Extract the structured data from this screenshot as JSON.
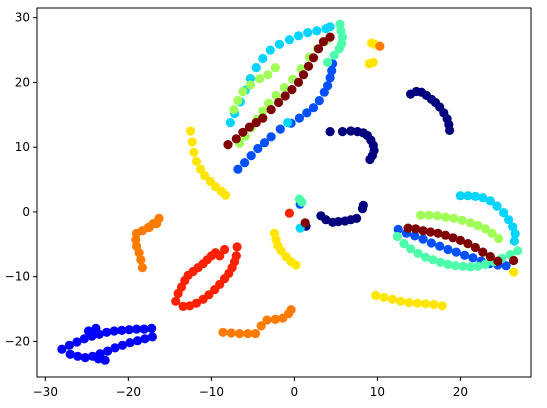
{
  "chart_data": {
    "type": "scatter",
    "title": "",
    "xlabel": "",
    "ylabel": "",
    "xlim": [
      -31,
      28.5
    ],
    "ylim": [
      -25.5,
      31.5
    ],
    "xticks": [
      -30,
      -20,
      -10,
      0,
      10,
      20
    ],
    "yticks": [
      -20,
      -10,
      0,
      10,
      20,
      30
    ],
    "grid": false,
    "legend": "none",
    "colors": {
      "navy": "#00007f",
      "blue": "#0000ff",
      "royalblue": "#0050ff",
      "cyan": "#00d4ff",
      "aquamarine": "#4dffaa",
      "lime": "#a0ff57",
      "yellow": "#ffe500",
      "orange": "#ff7b00",
      "red": "#ff2200",
      "maroon": "#7f0000"
    },
    "series": [
      {
        "color": "navy",
        "points": [
          [
            4.3,
            12.4
          ],
          [
            5.8,
            12.4
          ],
          [
            6.8,
            12.5
          ],
          [
            7.6,
            12.4
          ],
          [
            8.3,
            12.2
          ],
          [
            8.8,
            11.8
          ],
          [
            9.2,
            11.1
          ],
          [
            9.5,
            10.3
          ],
          [
            9.6,
            9.5
          ],
          [
            9.4,
            8.7
          ],
          [
            9.1,
            8.1
          ],
          [
            14.0,
            18.2
          ],
          [
            14.7,
            18.6
          ],
          [
            15.3,
            18.5
          ],
          [
            15.9,
            18.0
          ],
          [
            16.5,
            17.4
          ],
          [
            17.0,
            16.9
          ],
          [
            17.5,
            16.2
          ],
          [
            18.0,
            15.3
          ],
          [
            18.4,
            14.4
          ],
          [
            18.6,
            13.5
          ],
          [
            18.7,
            12.6
          ],
          [
            3.2,
            -0.6
          ],
          [
            3.8,
            -1.2
          ],
          [
            4.6,
            -1.6
          ],
          [
            5.3,
            -1.5
          ],
          [
            6.1,
            -1.4
          ],
          [
            6.8,
            -1.2
          ],
          [
            7.5,
            -1.0
          ],
          [
            8.2,
            0.5
          ],
          [
            8.3,
            1.0
          ],
          [
            1.4,
            -2.2
          ]
        ]
      },
      {
        "color": "blue",
        "points": [
          [
            -28.0,
            -21.2
          ],
          [
            -27.1,
            -20.6
          ],
          [
            -26.2,
            -20.1
          ],
          [
            -25.3,
            -19.6
          ],
          [
            -24.4,
            -19.2
          ],
          [
            -23.5,
            -18.9
          ],
          [
            -22.6,
            -18.6
          ],
          [
            -21.7,
            -18.4
          ],
          [
            -20.8,
            -18.3
          ],
          [
            -19.9,
            -18.2
          ],
          [
            -19.0,
            -18.1
          ],
          [
            -18.1,
            -18.1
          ],
          [
            -17.2,
            -18.0
          ],
          [
            -17.1,
            -19.3
          ],
          [
            -18.0,
            -19.6
          ],
          [
            -18.9,
            -19.9
          ],
          [
            -19.8,
            -20.2
          ],
          [
            -20.7,
            -20.6
          ],
          [
            -21.6,
            -21.0
          ],
          [
            -22.5,
            -21.5
          ],
          [
            -23.4,
            -21.9
          ],
          [
            -24.3,
            -22.3
          ],
          [
            -25.2,
            -22.5
          ],
          [
            -26.1,
            -22.3
          ],
          [
            -27.0,
            -22.0
          ],
          [
            -24.8,
            -18.4
          ],
          [
            -23.9,
            -18.0
          ],
          [
            -22.8,
            -22.9
          ],
          [
            -23.6,
            -22.7
          ]
        ]
      },
      {
        "color": "royalblue",
        "points": [
          [
            -6.8,
            6.6
          ],
          [
            -6.0,
            7.6
          ],
          [
            -5.2,
            8.7
          ],
          [
            -4.4,
            9.8
          ],
          [
            -3.6,
            10.7
          ],
          [
            -2.8,
            11.6
          ],
          [
            -1.7,
            12.8
          ],
          [
            -0.4,
            13.7
          ],
          [
            0.6,
            14.5
          ],
          [
            1.5,
            15.3
          ],
          [
            2.3,
            16.1
          ],
          [
            3.0,
            17.2
          ],
          [
            3.6,
            18.5
          ],
          [
            4.0,
            19.5
          ],
          [
            4.3,
            20.7
          ],
          [
            4.5,
            21.8
          ],
          [
            4.6,
            22.9
          ],
          [
            12.5,
            -2.7
          ],
          [
            13.5,
            -3.3
          ],
          [
            14.5,
            -3.7
          ],
          [
            15.5,
            -4.2
          ],
          [
            16.5,
            -4.8
          ],
          [
            17.5,
            -5.3
          ],
          [
            18.5,
            -5.8
          ],
          [
            19.5,
            -6.2
          ],
          [
            20.5,
            -6.7
          ],
          [
            21.5,
            -7.1
          ],
          [
            22.5,
            -7.6
          ],
          [
            23.5,
            -8.0
          ],
          [
            24.5,
            -8.2
          ],
          [
            25.5,
            -8.3
          ],
          [
            0.7,
            1.2
          ]
        ]
      },
      {
        "color": "cyan",
        "points": [
          [
            -7.2,
            15.2
          ],
          [
            -6.5,
            17.0
          ],
          [
            -5.9,
            18.8
          ],
          [
            -5.3,
            20.6
          ],
          [
            -4.6,
            22.3
          ],
          [
            -3.8,
            23.7
          ],
          [
            -2.9,
            25.0
          ],
          [
            -1.8,
            25.9
          ],
          [
            -0.6,
            26.6
          ],
          [
            0.5,
            27.2
          ],
          [
            1.6,
            27.7
          ],
          [
            2.7,
            28.0
          ],
          [
            3.8,
            28.3
          ],
          [
            4.3,
            28.6
          ],
          [
            -0.8,
            13.8
          ],
          [
            20.0,
            2.5
          ],
          [
            20.9,
            2.5
          ],
          [
            21.8,
            2.4
          ],
          [
            22.7,
            2.2
          ],
          [
            23.6,
            1.7
          ],
          [
            24.4,
            0.9
          ],
          [
            25.2,
            -0.1
          ],
          [
            25.8,
            -1.2
          ],
          [
            26.3,
            -2.3
          ],
          [
            26.6,
            -3.4
          ],
          [
            26.5,
            -4.5
          ],
          [
            -7.7,
            13.8
          ],
          [
            0.7,
            -2.5
          ]
        ]
      },
      {
        "color": "aquamarine",
        "points": [
          [
            4.0,
            23.1
          ],
          [
            4.8,
            24.2
          ],
          [
            5.4,
            25.2
          ],
          [
            5.7,
            26.0
          ],
          [
            5.8,
            27.0
          ],
          [
            5.6,
            28.0
          ],
          [
            5.5,
            29.0
          ],
          [
            12.4,
            -3.8
          ],
          [
            13.2,
            -4.9
          ],
          [
            14.0,
            -5.7
          ],
          [
            14.9,
            -6.4
          ],
          [
            15.8,
            -7.0
          ],
          [
            16.7,
            -7.4
          ],
          [
            17.6,
            -7.8
          ],
          [
            18.5,
            -8.1
          ],
          [
            19.4,
            -8.3
          ],
          [
            20.3,
            -8.4
          ],
          [
            21.2,
            -8.5
          ],
          [
            22.1,
            -8.4
          ],
          [
            23.0,
            -8.1
          ],
          [
            24.0,
            -7.7
          ],
          [
            25.0,
            -7.2
          ],
          [
            26.0,
            -6.6
          ],
          [
            26.9,
            -6.0
          ],
          [
            0.6,
            2.0
          ],
          [
            0.9,
            1.5
          ]
        ]
      },
      {
        "color": "lime",
        "points": [
          [
            -6.6,
            10.6
          ],
          [
            -5.9,
            11.7
          ],
          [
            -5.2,
            13.0
          ],
          [
            -4.5,
            14.3
          ],
          [
            -3.8,
            15.6
          ],
          [
            -3.1,
            16.8
          ],
          [
            -2.2,
            18.0
          ],
          [
            -1.2,
            19.2
          ],
          [
            -0.2,
            20.5
          ],
          [
            0.8,
            22.1
          ],
          [
            1.8,
            23.9
          ],
          [
            2.8,
            25.2
          ],
          [
            3.8,
            26.4
          ],
          [
            -7.3,
            15.8
          ],
          [
            -6.8,
            17.2
          ],
          [
            -6.2,
            18.6
          ],
          [
            -5.3,
            19.6
          ],
          [
            -4.2,
            20.6
          ],
          [
            -3.2,
            21.2
          ],
          [
            -2.3,
            22.3
          ],
          [
            15.2,
            -0.5
          ],
          [
            16.2,
            -0.5
          ],
          [
            17.2,
            -0.6
          ],
          [
            18.2,
            -0.8
          ],
          [
            19.2,
            -1.0
          ],
          [
            20.2,
            -1.3
          ],
          [
            21.2,
            -1.7
          ],
          [
            22.1,
            -2.1
          ],
          [
            23.0,
            -2.6
          ],
          [
            23.8,
            -3.3
          ],
          [
            24.6,
            -4.1
          ]
        ]
      },
      {
        "color": "yellow",
        "points": [
          [
            -12.5,
            12.5
          ],
          [
            -12.3,
            10.8
          ],
          [
            -12.1,
            9.2
          ],
          [
            -11.8,
            7.8
          ],
          [
            -11.3,
            6.6
          ],
          [
            -10.8,
            5.6
          ],
          [
            -10.1,
            4.7
          ],
          [
            -9.5,
            3.9
          ],
          [
            -8.8,
            3.2
          ],
          [
            -8.3,
            2.6
          ],
          [
            9.8,
            -12.9
          ],
          [
            10.8,
            -13.2
          ],
          [
            11.8,
            -13.5
          ],
          [
            12.8,
            -13.8
          ],
          [
            13.8,
            -14.0
          ],
          [
            14.8,
            -14.1
          ],
          [
            15.8,
            -14.2
          ],
          [
            16.8,
            -14.3
          ],
          [
            17.8,
            -14.5
          ],
          [
            -2.4,
            -3.3
          ],
          [
            -2.2,
            -4.3
          ],
          [
            -2.0,
            -5.2
          ],
          [
            -1.6,
            -6.0
          ],
          [
            -1.0,
            -6.9
          ],
          [
            -0.4,
            -7.7
          ],
          [
            0.2,
            -8.2
          ],
          [
            9.3,
            26.1
          ],
          [
            9.7,
            25.9
          ],
          [
            9.5,
            23.1
          ],
          [
            9.0,
            22.9
          ],
          [
            26.4,
            -9.3
          ]
        ]
      },
      {
        "color": "orange",
        "points": [
          [
            -16.3,
            -1.0
          ],
          [
            -17.0,
            -1.8
          ],
          [
            -17.6,
            -2.4
          ],
          [
            -18.3,
            -2.9
          ],
          [
            -19.0,
            -3.3
          ],
          [
            -19.1,
            -4.3
          ],
          [
            -19.0,
            -5.3
          ],
          [
            -18.7,
            -6.3
          ],
          [
            -18.5,
            -7.4
          ],
          [
            -18.3,
            -8.6
          ],
          [
            -17.5,
            -2.4
          ],
          [
            -16.6,
            -1.8
          ],
          [
            -8.6,
            -18.6
          ],
          [
            -7.6,
            -18.7
          ],
          [
            -6.6,
            -18.8
          ],
          [
            -5.6,
            -18.8
          ],
          [
            -4.7,
            -18.8
          ],
          [
            -4.0,
            -17.6
          ],
          [
            -3.3,
            -16.7
          ],
          [
            -2.3,
            -16.6
          ],
          [
            -1.4,
            -16.4
          ],
          [
            -0.7,
            -15.7
          ],
          [
            -0.4,
            -15.1
          ],
          [
            10.3,
            25.6
          ]
        ]
      },
      {
        "color": "red",
        "points": [
          [
            -14.3,
            -13.8
          ],
          [
            -14.0,
            -12.6
          ],
          [
            -13.6,
            -11.6
          ],
          [
            -13.2,
            -10.6
          ],
          [
            -12.8,
            -9.8
          ],
          [
            -12.2,
            -9.2
          ],
          [
            -11.6,
            -8.6
          ],
          [
            -11.0,
            -8.0
          ],
          [
            -10.5,
            -7.4
          ],
          [
            -10.0,
            -6.8
          ],
          [
            -9.5,
            -6.3
          ],
          [
            -13.4,
            -14.6
          ],
          [
            -12.6,
            -14.5
          ],
          [
            -11.8,
            -14.1
          ],
          [
            -11.0,
            -13.5
          ],
          [
            -10.3,
            -12.8
          ],
          [
            -9.6,
            -12.0
          ],
          [
            -9.0,
            -11.2
          ],
          [
            -8.4,
            -10.3
          ],
          [
            -7.9,
            -9.5
          ],
          [
            -7.5,
            -8.6
          ],
          [
            -7.2,
            -7.7
          ],
          [
            -7.0,
            -6.8
          ],
          [
            -6.9,
            -5.4
          ],
          [
            -9.0,
            -6.8
          ],
          [
            -8.4,
            -5.8
          ],
          [
            -0.6,
            -0.2
          ]
        ]
      },
      {
        "color": "maroon",
        "points": [
          [
            -8.0,
            10.4
          ],
          [
            -7.0,
            11.3
          ],
          [
            -6.2,
            12.3
          ],
          [
            -5.4,
            13.1
          ],
          [
            -4.6,
            13.8
          ],
          [
            -3.8,
            14.5
          ],
          [
            -2.8,
            15.8
          ],
          [
            -1.9,
            16.9
          ],
          [
            -1.1,
            17.9
          ],
          [
            -0.3,
            18.9
          ],
          [
            0.5,
            20.0
          ],
          [
            1.1,
            21.2
          ],
          [
            1.7,
            22.5
          ],
          [
            2.3,
            23.8
          ],
          [
            2.9,
            25.2
          ],
          [
            3.5,
            26.3
          ],
          [
            4.3,
            27.0
          ],
          [
            13.7,
            -2.5
          ],
          [
            14.6,
            -2.6
          ],
          [
            15.5,
            -2.9
          ],
          [
            16.4,
            -3.1
          ],
          [
            17.3,
            -3.3
          ],
          [
            18.2,
            -3.6
          ],
          [
            19.1,
            -4.0
          ],
          [
            20.0,
            -4.4
          ],
          [
            20.9,
            -4.9
          ],
          [
            21.8,
            -5.5
          ],
          [
            22.7,
            -6.2
          ],
          [
            23.6,
            -6.9
          ],
          [
            24.5,
            -7.6
          ],
          [
            26.4,
            -7.5
          ],
          [
            1.3,
            -1.7
          ]
        ]
      }
    ]
  }
}
